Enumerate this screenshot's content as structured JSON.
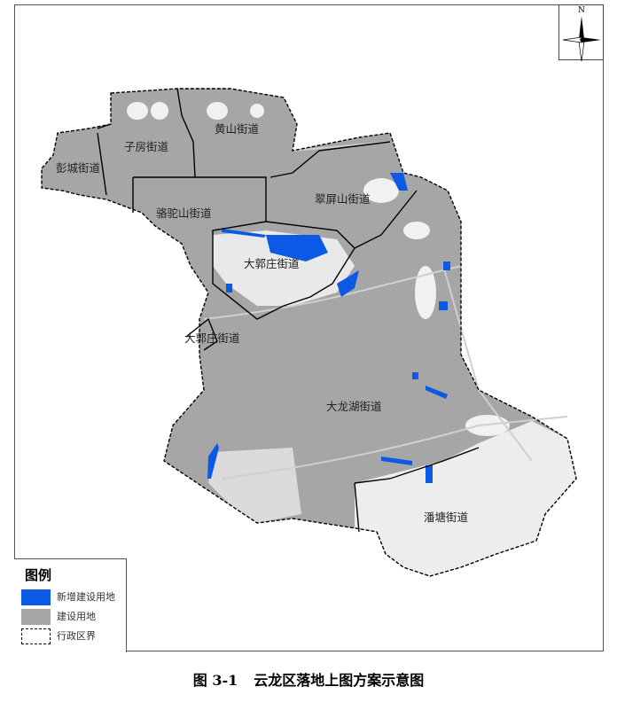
{
  "map": {
    "district_labels": [
      "彭城街道",
      "子房街道",
      "黄山街道",
      "骆驼山街道",
      "翠屏山街道",
      "大郭庄街道",
      "大郭庄街道",
      "大龙湖街道",
      "潘塘街道"
    ],
    "colors": {
      "new_construction_land": "#0a5ae6",
      "construction_land": "#a6a6a6",
      "boundary": "#000000"
    }
  },
  "compass": {
    "north_label": "N"
  },
  "legend": {
    "title": "图例",
    "items": [
      {
        "label": "新增建设用地",
        "color": "#0a5ae6"
      },
      {
        "label": "建设用地",
        "color": "#a6a6a6"
      },
      {
        "label": "行政区界",
        "color": "dashed-boundary"
      }
    ]
  },
  "caption": {
    "number": "图 3-1",
    "title": "云龙区落地上图方案示意图"
  }
}
